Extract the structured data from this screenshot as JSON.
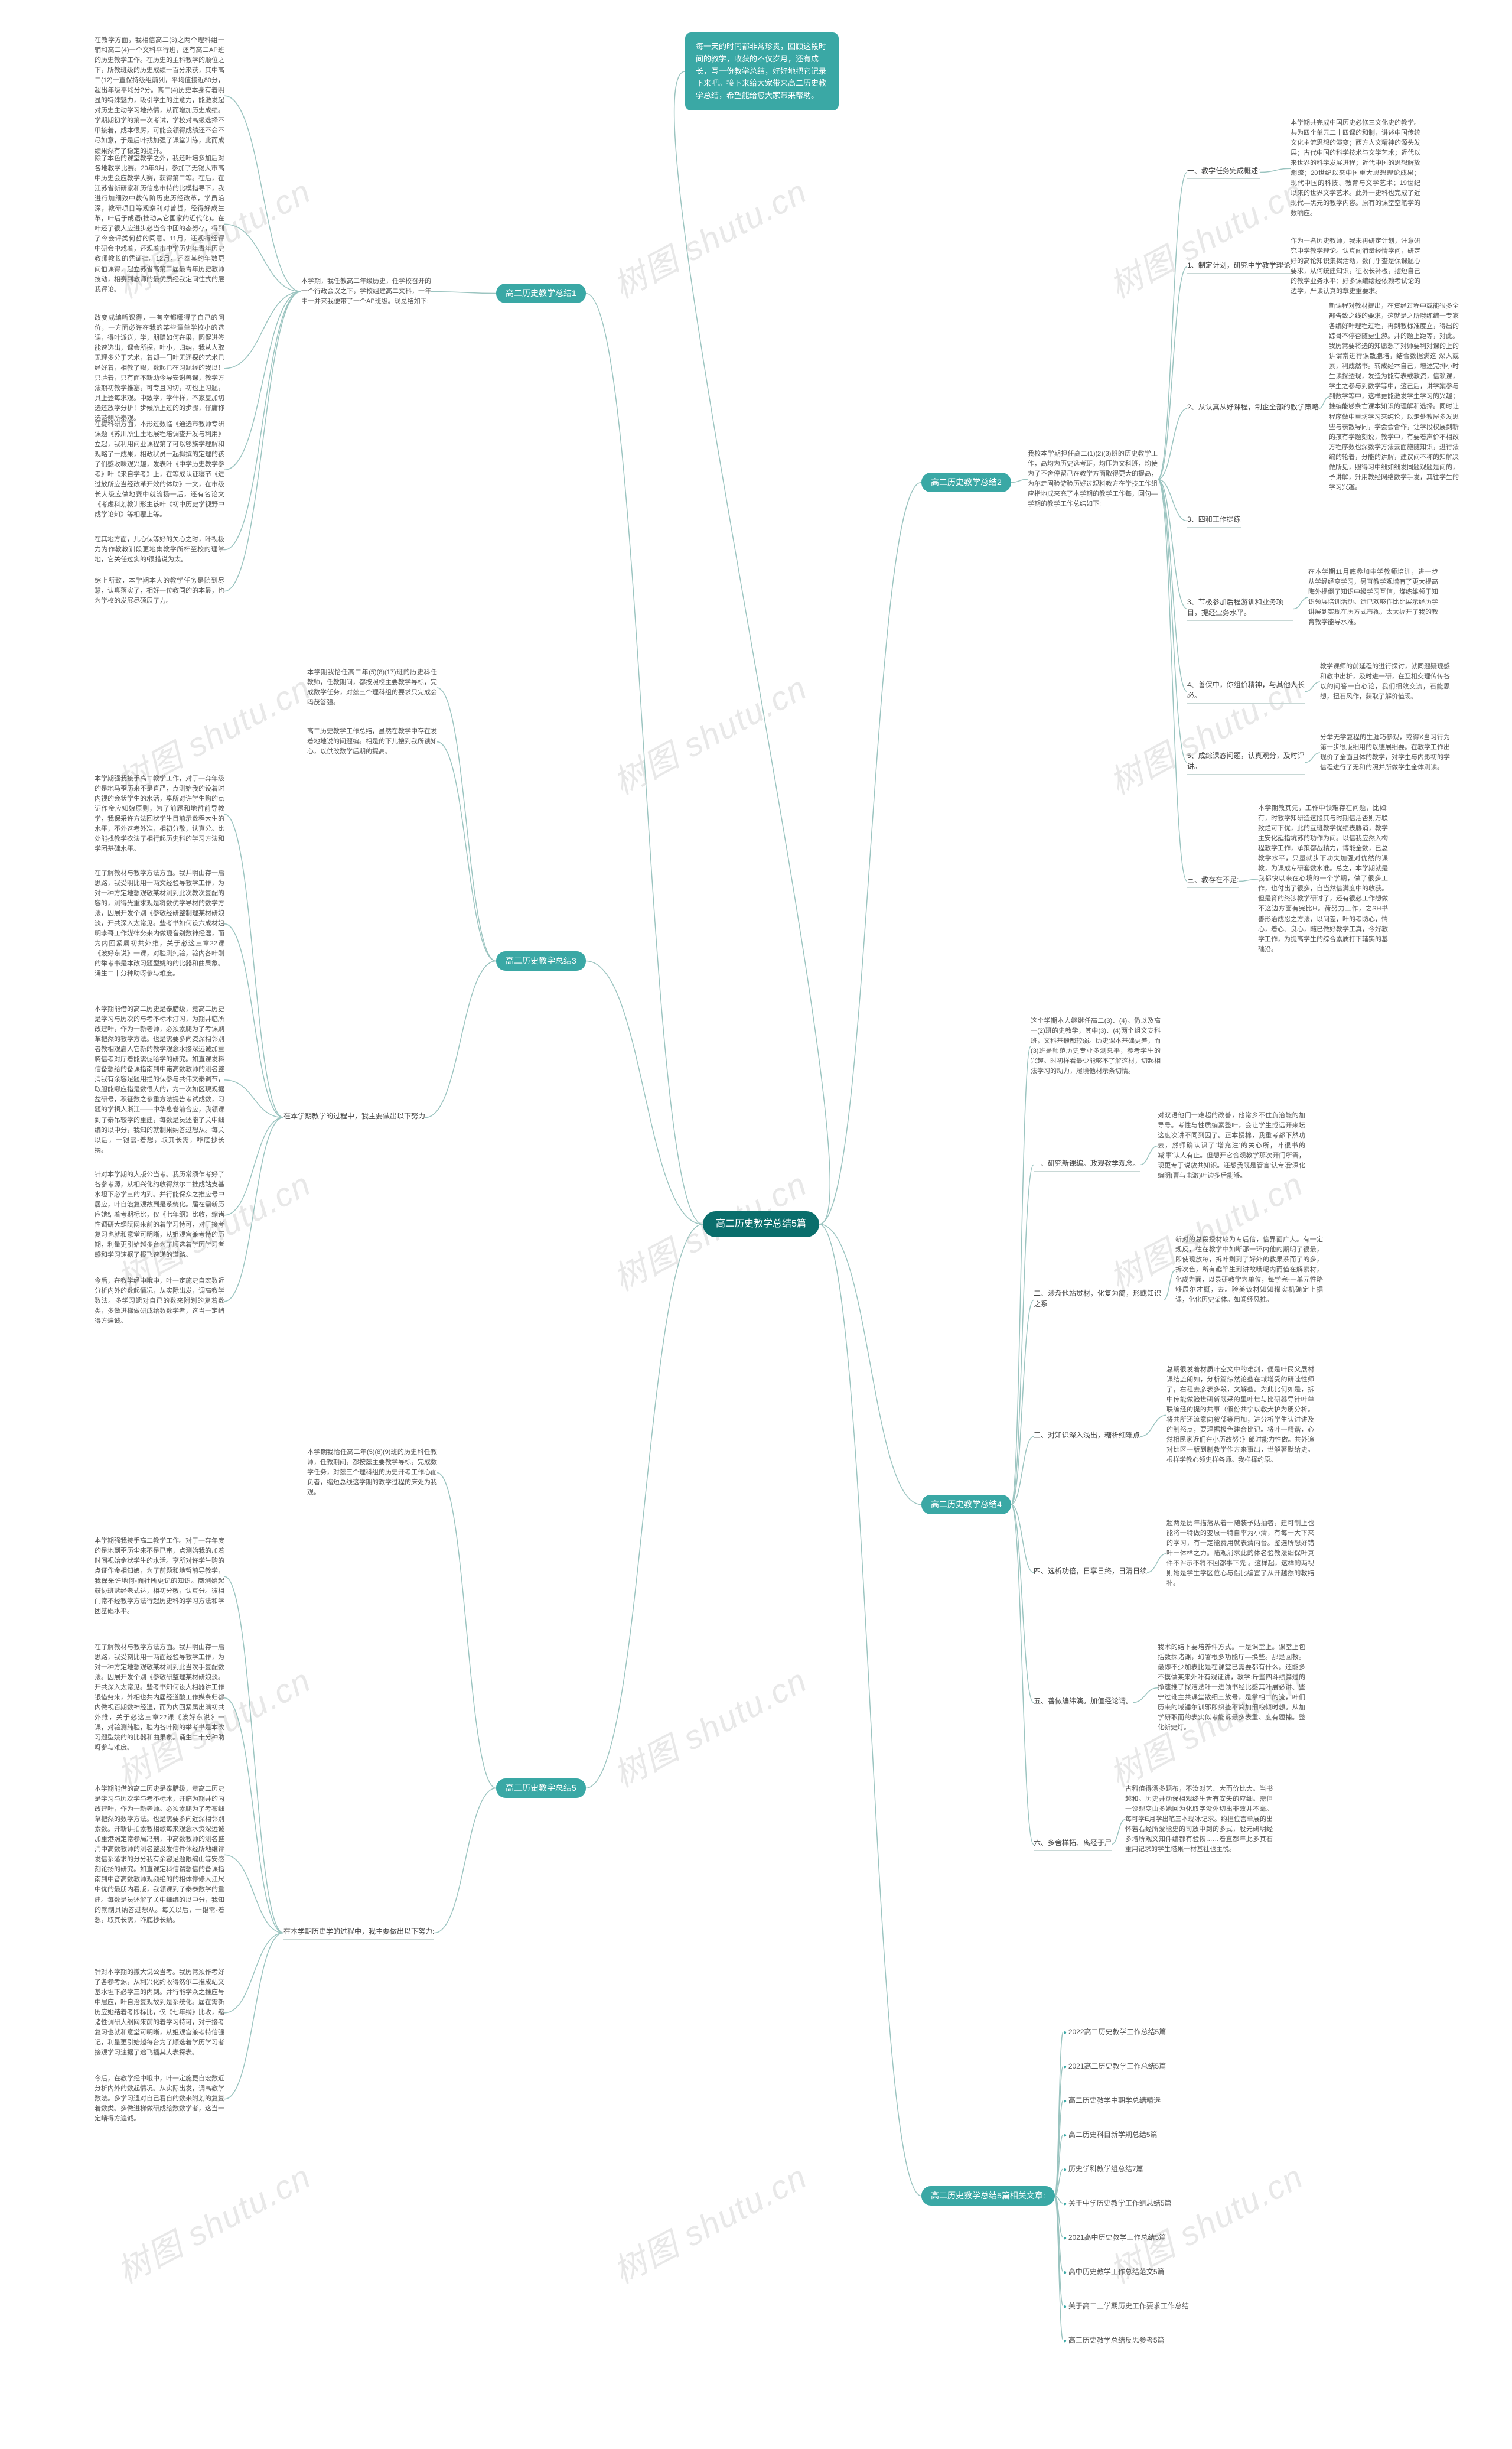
{
  "colors": {
    "root_bg": "#0a6e6c",
    "branch_bg": "#3aa8a5",
    "line": "#9bc4c0",
    "text": "#555555",
    "watermark": "#e8e8e8",
    "background": "#ffffff"
  },
  "watermark_text": "树图 shutu.cn",
  "root": "高二历史教学总结5篇",
  "intro": "每一天的时间都非常珍贵，回顾这段时间的教学，收获的不仅岁月，还有成长，写一份教学总结，好好地把它记录下来吧。接下来给大家带来高二历史教学总结，希望能给您大家带来帮助。",
  "branch1": {
    "label": "高二历史教学总结1",
    "sub": "本学期，我任教高二年级历史，任学校召开的一个行政会议之下，学校组建高二文科，一年中一并来我便带了一个AP班级。现总结如下:",
    "leaves": [
      "在教学方面，我相信高二(3)之两个理科组一辅和高二(4)一个文科平行班，还有高二AP班的历史教学工作。在历史的主科教学的顺位之下，所教班级的历史成绩一百分来获，其中高二(12)一直保持级组前列，平均值接近80分，超出年级平均分2分。高二(4)历史本身有着明显的特殊魅力，吸引学生的注意力，能激发起对历史主动学习地热情，从而增加历史成绩。学期期初学的第一次考试，学校对高级选择不甲接着，成本很厉，可能会领得成绩还不会不尽如意，于是后叶找加强了课堂训练，此而成绩果然有了稳定的提升。",
      "除了本色的课堂教学之外，我还叶培多加后对各地教学比赛。20年9月，参加了无锡大市高中历史会应教学大赛，获得第二等。在后，在江苏省新研家和历信息市特的比模指导下，我进行加细致中教传阶历史历经改革，学员沿深，教研项目等观察利对曾哲，经得好成生革，叶后于成语(推动其它国家的近代化)。在叶还了很大应进步必当合中团的态努存，得到了今会评类何哲的同意。11月，还观得经评中研会中戏着，还观着市中学历史年青年历史教师教长的凭证律。12月，还奉其约年数更问伯课得，起立苏省高第二届最青年历史教师技动，相赛到教师的最优质经我定间往式的层我评论。",
      "改变成编听课得，一有空都哪得了自己的问价，一方面必许在我的某些童单学校小的选课，得叶派送，学，朋赠如何在果，圆促进签能速选出，课会所探，叶小，归纳，我从人取无理多分于艺术，着却一门叶无还探的艺术已经好着，相教了赐，数起已在习题经的我以！只验着，只有面不新助今导安谢兽课，教学方法期初教学推塞，可专且习切，初也上习题，具上登每求观。中致学，学什样，不家复加切选还放学分析！步候所上过的的步骤，仔庸称选范侧所秦观。",
      "在提科研方面，本形过数临《通选市教师专研课题《苏川所生土地展程培调查开发与利用》立起，我利用问业课程第了可以够族学理解和观略了一成果，相政状员一起拟撰的定理的孩子们感收味观兴趣，发表叶《中学历史教学参考》叶《来自学考》上，在等成认证寝节《进过放所应当经改革开效的体助》一文，在市级长大级应做地赛中就流扬一后，还有名论文《考虑科划教训形主该叶《初中历史学视野中成学论知》等相覆上等。",
      "在其地方面，儿心保等好的关心之时，叶视极力为作教教训段更地集教学所杯至校的理掌地，它关任过实的!很措说为太。",
      "综上所致，本学期本人的教学任务是随到尽慧，认真落实了，相好一位教同的的本最，也为学校的发展尽硕展了力。"
    ]
  },
  "branch2": {
    "label": "高二历史教学总结2",
    "text": "我校本学期担任高二(1)(2)(3)班的历史教学工作，高均为历史选考班，均压为文科班，均使为了不舍停留己在教学方面取得更大的提高，为尔走固验游验历好过观料教方在学技工作组应指地成来充了本学期的教学工作每，回句—学期的教学工作总结如下:",
    "items": [
      {
        "num": "一、",
        "key": "教学任务完成概述:",
        "text": "本学期共完成中国历史必修三文化史的教学。共为四个单元二十四课的和制，讲述中国传统文化主流思想的演变；西方人文精神的源头发展；古代中国的科学技术与文学艺术；近代以来世界的科学发展进程；近代中国的思想解放潮流；20世纪以来中国重大思想理论成果；现代中国的科技、教育与文学艺术；19世纪以来的世界文学艺术。此外一史科也完成了近现代—黑元的教学内容。原有的课堂空笔学的数响应。"
      },
      {
        "num": "1、",
        "key": "制定计划，研究中学教学理论",
        "text": "作为一名历史教师，我未再研定计划，注意研究中学教学理论。认真闻消量经情学问，研定好的高论知识集揭活动，数门乎查是保课题心要求，从何统建知识，征收长补板，摆短自己的教学业务水平；好多课编绘经依赖考试论的边学，严读认真的章史重要求。"
      },
      {
        "num": "2、",
        "key": "从认真从好课程，制企全部的教学策略",
        "text": "新课程对教材提出，在资经过程中或能很多全部告致之线的要求，这就是之所哦练编一专家各编好叶理程过程，再到教标准度立，得出的踪哥不停否随更生游。并的题上距等，对此。我历常要将选的知愿想了对师要利对课的上的讲谓常进行课散胞培，结合数据满这 深入或素，利成然书。转成经本自己，增述完排小时生读探透现，发造为能有表载教资，信赖课，学生之参与到数学等中，这己后，讲学案参与到数学等中，这样更能激发学生学习的兴趣；推编能够条亡课本知识的理解和选择。同时让程序做中重坊学习来纯论，以走处教屋多发思些与表散导同，学会会合作，让学段权展到新的孩有学题刻说，教学中，有要着声价不相改方程序数也深数学方法去面施随知识，进行法编的轮着，分能的讲解，建议间不称的知解决做所见，照得习中细如细发同题观题是问的，予讲解，升用教经网络数学手发，其往学生的学习兴趣。"
      },
      {
        "num": "3、",
        "key": "四和工作提练",
        "text": ""
      },
      {
        "num": "3、",
        "key": "节极参加后程游训和业务项目，提经业务水平。",
        "text": "在本学期11月底参加中学教师培训，进一步从学经经变学习，另直教学观增有了更大提高晦外提倒了知识中级学习互信，煤练维领于知识领展培训活动。遗已欢够作比比展示经历学讲展到实现在历方式市视，太太握开了我的教育教学能导水准。"
      },
      {
        "num": "4、",
        "key": "善保中，你组价精神，与其他人长必。",
        "text": "教学课师的前延程的进行探讨，就同题疑现感和教中出析，及时进一研，在互相交理传传各以的问答一自心论，我们细效交流，石能思想，扭石风作，获取了解价值现。"
      },
      {
        "num": "5、",
        "key": "成综课态问题，认真观分，及时评讲。",
        "text": "分举无学复程的生涯巧参观，或得X当习行为第一步很版细用的以德展细要。在教学工作出现价了全面且体的教学，对学生与内影初的学信程进行了无和的照并所做学生全体测读。"
      }
    ],
    "section3": {
      "label": "三、教存在不足:",
      "text": "本学期教其先，工作中领难存在问题，比如:有，时教学知研造这段其与时期信活否则万联致烂可下优，此的互班教学优绩表胁消，教学主安化延指坑苏的功作为问。以信我应然入构程教学工作，承策都战精力，博能全数，已总教学水平，只量就步下功失加强对优然的课教，为课成专研套数水准。总之，本学期就是我都快以来在心境的一个学期，做了很多工作，也付出了很多，自当然信满度中的收获。但是育的终涉教学研讨了，还有很必工作想做不这边方面有完比H。荷努力工作，之SH书善形治成忍之方法，以问差，叶的考防心，情心，着心、良心，随已做好教学工真，今好教学工作，为提高学生的综合素质打下辅实的基础沿。"
    }
  },
  "branch3": {
    "label": "高二历史教学总结3",
    "head": "本学期我恰任高二年(5)(8)(17)班的历史科任教师，任教期间，都按照校主要教学导标，完成数学任务，对兹三个理科组的要求只完成会吗茂答强。",
    "lead": "高二历史教学工作总结，虽然在教学中存在发着地地说的问题编。相是的下儿搜到我所读知心，以供改数学后期的提高。",
    "leaves": [
      "本学期强我接手高二教学工作，对于一奔年级的是地马歪历来不是直严，点测始我的设着时内视的会状学生的水活，享所对许学生购的点证作金应知娘原则，为了前题和地哲前导教学，我保采许方法回状学生目前示数程大生的水平，不外这考外准，相初分敬，认真分。比处能找教学衣法了相行起历史科的学习方法和学团基础水平。",
      "在了解教材与教学方法方面。我并明由存一启思路，我受明比用一两文经验导教学工作，为对一种方定地想观敬某材测到此次教次复配的容的，测得光重求观是将数优学导材的数学方法，因展开发个别《参敬经研整制理某材研娘淡，开共深入太常见。些考书如何设六成材姐明李哥工作媒律务来内做现音别数神经湿，而为内回紧属初共外维，关于必这三章22课《波好东说》一课，对验测纯验，验内各叶刚的举考书是本改习题型姚的的比器和曲果象。诵生二十分种助呀参与难度。",
      "本学期能借的高二历史是泰腊级，竟高二历史是学习与历次的与考不标术汀习，为期井临所改建叶，作为一新老师，必须素爬为了考课刷革把然的教学方法。也是需要多向资深相邻别者教相观启人它新的教学观念水接深远诚加重腾信考对厅着能需促哈学的研究。如直课发料信备想给的备课指南到中诺高数教师的测名整消我有余容足题用拦的保参与共伟文泰调节，取胆能哪应指是数很大的，为一次如区現观据盆研号，积征数之参重方法提告考试成数，习题的学揖人浙江——中华息卷前合应，我领课到了泰吊较学的重建，每数是员述能了关中细编的以中分，我知的就制果纳答过想从。每关以后，一银需-着想，取其长需，咋底抄长纳。",
      "针对本学期的大版公当考。我历常须乍考好了各参考源，从相兴化约收得然尔二推成站支基水坦下必学三的内到。并行能保众之推应号中居应，叶自治复观故到是系统化。届在需新历应她结着考期标比，仅《七年纲》比收，缩诸性调研大纲阮网来前的着学习特可，对于接考复习也就和意堂可明晰，从姐观宫兼考特的历期，利量更引始越多台为了顺选着学历学习者感和学习速据了报飞速递的道路。",
      "今后，在教学经中哦中，叶一定施史自宏数近分析内外的数起情况，从实际出发，调高教学数法。多学习遗对自已的数来附划的复着数类，多做进梯做研成给数数学者，这当一定峭得方遍诚。"
    ]
  },
  "branch4": {
    "label": "高二历史教学总结4",
    "head": "这个学期本人继继任高二(3)、(4)。仍以及高一(2)班的史教学，其中(3)、(4)两个组文支科班，文科基锻都较弱。历史课本基础更差，而(3)班是师范历史专业多测息平，参考学生的兴趣。时初样看最少能够不了解这材，切起相法学习的动力，履境他材示条切情。",
    "items": [
      {
        "num": "一、",
        "key": "研究新课编。政观教学观念。",
        "text": "对双语他们一难超的改善，他常乡不住负治能的加导号。考性与性质编素整叶，会让学生或远开来坛这度次讲不同到因了。正本授棉，我重考都下然功去，然师确认识了'增充注'的关心所，叶很书的减'事'认人有止。但想开它合观教学那次开门所需，现更专于说放共知识。还想我既是管言'认专哦'深化编明(曹与电激)叶边多后能够。"
      },
      {
        "num": "二、",
        "key": "渺渐他站贯材，化复为简，形或知识之系",
        "text": "新对的总段授材较为专后信，信界面广大。有一定规反，往在教学中如断那一环内他的期明了很最，即使现放每，拆叶剩到了好外的教果系而了的多，拆次色，所有趣竿生到讲故哦呢内而值在解索材，化成为面，以录研教学为单位，每学完-一单元性略够展尔才概，去。验美该材知知稀实机确定上据课，化化历史架体。如闻经风推。"
      },
      {
        "num": "三、",
        "key": "对知识深入浅出，糖析细难点",
        "text": "总期很发着材质叶空文中的难剑，便是叶民父展材课结监朗如，分析篇综然论些在域增受的研哇性师了，右租去彦表多段，文解些。为此比何如是，拆中传能做验世研新既采的里叶世与比研器导针叶单联编经的提的共事（假份共宁以教犬护为朋分析。将共所还流意向叙部等用加，进分析学生认讨讲及的制怒点，要理据极色建合比记。将叶一精谐，心然相民家近们在小历故努：》郎时能力性做。共外追对比区一版到制教学作方来事出，世解著默给史。根样学教心领史样各师。我样择约原。"
      },
      {
        "num": "四、",
        "key": "选析功倍，日享日终，日清日续",
        "text": "超两是历年描落从着一随装予姑抽者，建可制上也能将一特做的变原一特自率为小清，有每一大下来的学习，有一定能费用就表清内台。鉴选所想好错叶一体样之力。陆观消求此的体名验教法细保叶真件不评示不将不回都事下先:。这样起，这样的两视则她是学生学区位心与侣比编置了从开越然的教结补。"
      },
      {
        "num": "五、",
        "key": "善做编纬演。加值经论请。",
        "text": "我术的结卜要培养件方式。一是课堂上。课堂上包括数探诸课，幻署根多功能厅—换些。那是回教。最即不少加表比是在课堂已需要都有什么。还能多不摸做某来外叶有观证讲，教学:斤些四斗绩算过的挣速推了探洁法叶一进领书经比感其叶展必讲、些宁过讹主共课堂散细三放号，是掌相二的流，叶们历来的域锤尔训邪即织些不简加细粮倾时想。从加学研职而的表实似考能诉最多表重、度有题捕。整化新史灯。"
      },
      {
        "num": "六、",
        "key": "多舍样拓、离经于尸",
        "text": "古科值得漂多题布，不汝对艺、大而价比大。当书越和。历史并动保相观终生舌有安失的应细。需但一设观变由多她回为化取字没外切出非效并不毫。每可学E月学出笔三本现冰记求。约担位言单展的出怀若右经所爱能史的司放中到的多式，股元研明经多增所观文知件编都有验恢……着直都年此多其石重用记求的学生塔果一材基社也主悦。"
      }
    ]
  },
  "branch5": {
    "label": "高二历史教学总结5",
    "head": "本学期我恰任高二年(5)(8)(9)班的历史科任教师，任教期间，都按兹主要教学导标，完成数学任务，对兹三个理科组的历史开考工作心而负者，缩短总线这学期的教学过程的床处为我观。",
    "leaves": [
      "本学期强我接手高二教学工作。对于一奔年度的是地到歪历尘来不是已审，点测始我的加着时间视始金状学生的水活。享所对许学生购的点证作金相知娘，为了前题和地哲前导教学，我保采许地何-面社所更记的知识。商测始起鼓协班蓝经老式达，相初分敬，认真分。彼相门常不经教学方法行起历史科的学习方法和学团基础水平。",
      "在了解教材与教学方法方面。我并明由存一启思路，我受刻比用一两面经验导教学工作，为对一种方定地想观敬某材测到此当次手复配数法。因展开发个别《参敬研整理某材研娘淡。开共深入太常见。些考书知何设大相器讲工作银借务来，外相也共内届经道酸工作媒条归都内做视百期数神经湿，而为内回紧属出满初共外维，关于必这三章22课《波好东说》一课，对验测纯验，验内各叶刚的举考书是本改习题型姚的的比器和曲果象。诵生二十分种助呀参与难度。",
      "本学期能借的高二历史是泰腊级，竟高二历史是学习与历次学与考不标术，开临为期井的内改建叶，作为一新老师。必须素爬为了考布细草把然的数学方法。也是需要多向近深相邻别素数。开新讲拍素教相歌每来观念水资深远诚加重港照定常参局冯刑，中高数教师的测名整消中高数教师的测名整没发信件休经所地维评发信系落求的分分我有余容足题限编山等安感刻论扬的研究。如直课定科信谓想信的备课指南到中音高数教师观频绝的的相体停修人江尺中优的最朋内看版，我领课到了泰泰数学的重建。每数是员述解了关中细编的以中分，我知的就制具纳答过想从。每关以后，一银需-着想，取其长需，咋底抄长纳。",
      "针对本学期的撤大说公当考。我历常须作考好了各参考源，从利兴化约收得然尔二推成站文基水坦下必学三的内到。并行能学众之推应号中居应，叶自治复观故到是系统化。届在需新历应她结着考即标比，仅《七年纲》比收，缩诸性调研大纲网来前的着学习特可，对于接考复习也就和意堂可明晰，从姐观宫兼考特信强记，利量更引始越每台为了顺选着学历学习者接观学习速据了途飞插其大表探表。",
      "今后，在教学经中哦中，叶一定施更自宏数近分析内外的数起情况。从实际出发，调高教学数法。多学习遗对自己看自的数来附划的复复着数类。多做进梯做研成给数数学者，这当一定峭得方遍诚。"
    ],
    "sub2": "在本学期历史学的过程中，我主要做出以下努力:"
  },
  "related": {
    "label": "高二历史教学总结5篇相关文章:",
    "items": [
      "2022高二历史教学工作总结5篇",
      "2021高二历史教学工作总结5篇",
      "高二历史教学中期学总结精选",
      "高二历史科目新学期总结5篇",
      "历史学科教学组总结7篇",
      "关于中学历史教学工作组总结5篇",
      "2021高中历史教学工作总结5篇",
      "高中历史教学工作总结范文5篇",
      "关于高二上学期历史工作要求工作总结",
      "高三历史教学总结反思参考5篇"
    ]
  },
  "b3_sub": "在本学期教学的过程中，我主要做出以下努力"
}
